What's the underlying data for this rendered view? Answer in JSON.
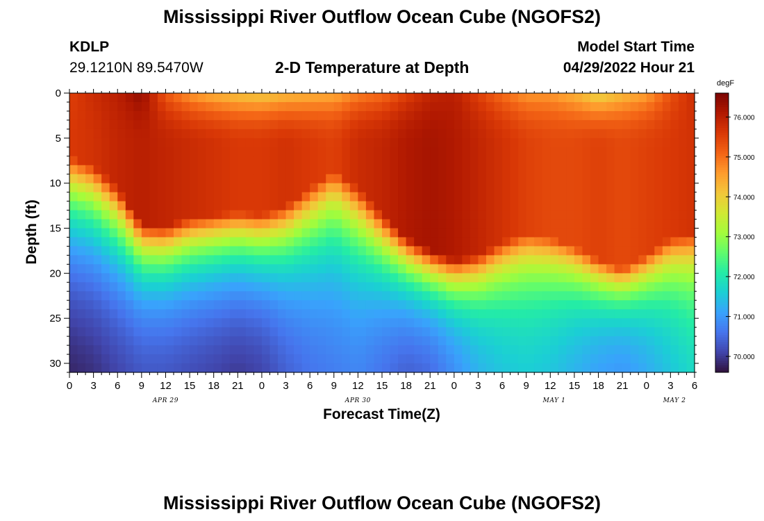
{
  "header": {
    "title": "Mississippi River Outflow Ocean Cube (NGOFS2)",
    "station_id": "KDLP",
    "station_coords": "29.1210N  89.5470W",
    "subtitle": "2-D Temperature at Depth",
    "model_start_label": "Model Start Time",
    "model_start_value": "04/29/2022 Hour 21"
  },
  "footer": {
    "title": "Mississippi River Outflow Ocean Cube (NGOFS2)"
  },
  "colors": {
    "colormap": [
      "#30123b",
      "#4145ab",
      "#4675ed",
      "#39a2fc",
      "#1bcfd4",
      "#24eca6",
      "#61fc6c",
      "#a4fc3b",
      "#d1e834",
      "#f3c63a",
      "#fe9b2d",
      "#f36315",
      "#d93806",
      "#b11901",
      "#7a0402"
    ]
  },
  "chart_data": {
    "type": "heatmap",
    "title": "2-D Temperature at Depth",
    "xlabel": "Forecast Time(Z)",
    "ylabel": "Depth (ft)",
    "units": "degF",
    "xlim": [
      0,
      78
    ],
    "ylim": [
      0,
      31
    ],
    "x_ticks": [
      0,
      3,
      6,
      9,
      12,
      15,
      18,
      21,
      24,
      27,
      30,
      33,
      36,
      39,
      42,
      45,
      48,
      51,
      54,
      57,
      60,
      63,
      66,
      69,
      72,
      75,
      78
    ],
    "x_tick_labels": [
      "0",
      "3",
      "6",
      "9",
      "12",
      "15",
      "18",
      "21",
      "0",
      "3",
      "6",
      "9",
      "12",
      "15",
      "18",
      "21",
      "0",
      "3",
      "6",
      "9",
      "12",
      "15",
      "18",
      "21",
      "0",
      "3",
      "6"
    ],
    "date_labels": [
      {
        "label": "APR 29",
        "at": 12
      },
      {
        "label": "APR 30",
        "at": 36
      },
      {
        "label": "MAY 1",
        "at": 60.5
      },
      {
        "label": "MAY 2",
        "at": 75.5
      }
    ],
    "y_ticks": [
      0,
      5,
      10,
      15,
      20,
      25,
      30
    ],
    "y_tick_labels": [
      "0",
      "5",
      "10",
      "15",
      "20",
      "25",
      "30"
    ],
    "colorbar": {
      "min": 69.6,
      "max": 76.6,
      "ticks": [
        70,
        71,
        72,
        73,
        74,
        75,
        76
      ],
      "tick_labels": [
        "70.000",
        "71.000",
        "72.000",
        "73.000",
        "74.000",
        "75.000",
        "76.000"
      ]
    },
    "bottom_warm": {
      "y": 31,
      "values": [
        69.8,
        69.9,
        70.1,
        70.3,
        70.3,
        70.1,
        70.0,
        70.3,
        70.7,
        70.9,
        70.6,
        70.3,
        70.9,
        71.5,
        71.6,
        71.2,
        71.0,
        71.4,
        71.8
      ]
    },
    "profile_times": [
      0,
      3,
      6,
      9,
      12,
      15,
      18,
      21,
      24,
      27,
      30,
      33,
      36,
      39,
      42,
      45,
      48,
      51,
      54,
      57,
      60,
      63,
      66,
      69,
      72,
      75,
      78
    ],
    "mixed_layer_depth": [
      11,
      12,
      14.5,
      18.5,
      18.8,
      17.8,
      17.5,
      17.2,
      17.5,
      16.5,
      14.5,
      12.5,
      14.5,
      17.5,
      20,
      21.5,
      22.5,
      22,
      20.5,
      19.5,
      20,
      21,
      22.5,
      23.5,
      22,
      20,
      19.5
    ],
    "surface_temp": [
      75.5,
      75.8,
      76.0,
      76.4,
      75.2,
      74.6,
      74.3,
      74.1,
      74.0,
      74.2,
      74.3,
      74.4,
      74.8,
      75.0,
      75.5,
      75.9,
      76.0,
      75.5,
      75.0,
      74.6,
      74.6,
      74.3,
      73.8,
      74.2,
      74.5,
      75.3,
      75.8
    ],
    "core_temp": [
      75.6,
      75.7,
      75.9,
      76.0,
      75.9,
      75.8,
      75.7,
      75.6,
      75.6,
      75.7,
      75.6,
      75.5,
      75.8,
      75.9,
      76.1,
      76.2,
      76.1,
      75.9,
      75.7,
      75.5,
      75.4,
      75.4,
      75.5,
      75.4,
      75.5,
      75.6,
      75.7
    ],
    "deep_cool_at_31ft": [
      69.8,
      69.9,
      70.1,
      70.3,
      70.3,
      70.2,
      70.1,
      70.0,
      70.1,
      70.4,
      70.6,
      70.7,
      70.8,
      70.6,
      70.4,
      70.5,
      70.9,
      71.3,
      71.5,
      71.6,
      71.5,
      71.3,
      71.1,
      71.0,
      71.2,
      71.5,
      71.8
    ]
  }
}
